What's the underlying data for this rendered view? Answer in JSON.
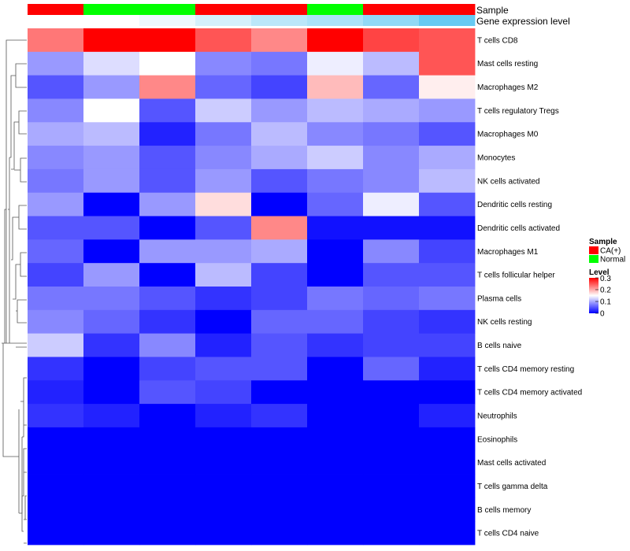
{
  "chart_data": {
    "type": "heatmap",
    "annotation_titles": [
      "Sample",
      "Gene expression level"
    ],
    "sample_groups": [
      "CA(+)",
      "Normal",
      "Normal",
      "CA(+)",
      "CA(+)",
      "Normal",
      "CA(+)",
      "CA(+)"
    ],
    "gene_expression_level": [
      0.0,
      0.0,
      0.1,
      0.25,
      0.4,
      0.5,
      0.65,
      0.9
    ],
    "rows": [
      "T cells CD8",
      "Mast cells resting",
      "Macrophages M2",
      "T cells regulatory  Tregs",
      "Macrophages M0",
      "Monocytes",
      "NK cells activated",
      "Dendritic cells resting",
      "Dendritic cells activated",
      "Macrophages M1",
      "T cells follicular helper",
      "Plasma cells",
      "NK cells resting",
      "B cells naive",
      "T cells CD4 memory resting",
      "T cells CD4 memory activated",
      "Neutrophils",
      "Eosinophils",
      "Mast cells activated",
      "T cells gamma delta",
      "B cells memory",
      "T cells CD4 naive"
    ],
    "values": [
      [
        0.23,
        0.3,
        0.3,
        0.25,
        0.22,
        0.3,
        0.26,
        0.25
      ],
      [
        0.09,
        0.13,
        0.15,
        0.08,
        0.07,
        0.14,
        0.11,
        0.25
      ],
      [
        0.05,
        0.09,
        0.22,
        0.06,
        0.04,
        0.19,
        0.06,
        0.16
      ],
      [
        0.08,
        0.15,
        0.05,
        0.12,
        0.09,
        0.11,
        0.1,
        0.09
      ],
      [
        0.1,
        0.11,
        0.02,
        0.07,
        0.11,
        0.08,
        0.07,
        0.05
      ],
      [
        0.08,
        0.09,
        0.05,
        0.08,
        0.1,
        0.12,
        0.08,
        0.1
      ],
      [
        0.07,
        0.09,
        0.05,
        0.09,
        0.05,
        0.07,
        0.08,
        0.11
      ],
      [
        0.09,
        0.0,
        0.09,
        0.17,
        0.0,
        0.06,
        0.14,
        0.05
      ],
      [
        0.05,
        0.05,
        0.0,
        0.05,
        0.22,
        0.01,
        0.01,
        0.01
      ],
      [
        0.06,
        0.0,
        0.09,
        0.09,
        0.1,
        0.0,
        0.08,
        0.04
      ],
      [
        0.04,
        0.09,
        0.0,
        0.11,
        0.04,
        0.0,
        0.05,
        0.05
      ],
      [
        0.07,
        0.07,
        0.05,
        0.03,
        0.04,
        0.07,
        0.06,
        0.07
      ],
      [
        0.08,
        0.06,
        0.03,
        0.0,
        0.06,
        0.06,
        0.04,
        0.03
      ],
      [
        0.12,
        0.03,
        0.08,
        0.02,
        0.05,
        0.03,
        0.04,
        0.04
      ],
      [
        0.03,
        0.0,
        0.04,
        0.05,
        0.05,
        0.0,
        0.06,
        0.02
      ],
      [
        0.02,
        0.0,
        0.05,
        0.04,
        0.0,
        0.0,
        0.0,
        0.0
      ],
      [
        0.03,
        0.02,
        0.0,
        0.02,
        0.03,
        0.0,
        0.0,
        0.02
      ],
      [
        0.0,
        0.0,
        0.0,
        0.0,
        0.0,
        0.0,
        0.0,
        0.0
      ],
      [
        0.0,
        0.0,
        0.0,
        0.0,
        0.0,
        0.0,
        0.0,
        0.0
      ],
      [
        0.0,
        0.0,
        0.0,
        0.0,
        0.0,
        0.0,
        0.0,
        0.0
      ],
      [
        0.0,
        0.0,
        0.0,
        0.0,
        0.0,
        0.0,
        0.0,
        0.0
      ],
      [
        0.0,
        0.0,
        0.0,
        0.0,
        0.0,
        0.0,
        0.0,
        0.0
      ]
    ],
    "legend": {
      "sample_title": "Sample",
      "sample_entries": [
        {
          "label": "CA(+)",
          "color": "#FF0000"
        },
        {
          "label": "Normal",
          "color": "#00FF00"
        }
      ],
      "level_title": "Level",
      "level_ticks": [
        0,
        0.1,
        0.2,
        0.3
      ],
      "level_tick_labels": [
        "0",
        "0.1",
        "0.2",
        "0.3"
      ],
      "range": [
        0,
        0.3
      ],
      "colors": {
        "low": "#0000FF",
        "mid": "#FFFFFF",
        "high": "#FF0000"
      }
    },
    "gene_expression_colors": {
      "low": "#FFFFFF",
      "high": "#56C4F1"
    },
    "row_dendrogram": true
  }
}
